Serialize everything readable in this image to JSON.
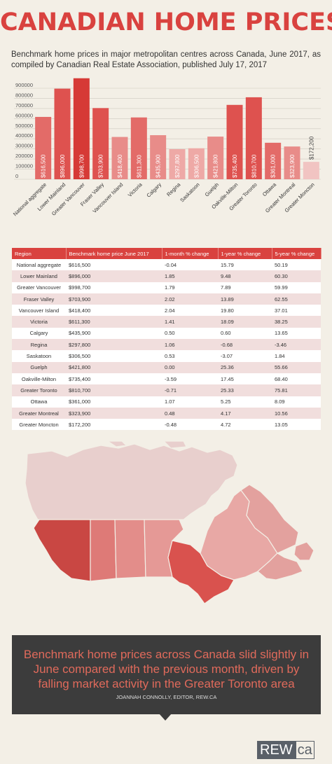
{
  "header": {
    "title": "CANADIAN HOME PRICES",
    "subtitle": "Benchmark home prices in major metropolitan centres across Canada, June 2017, as compiled by Canadian Real Estate Association, published July 17, 2017"
  },
  "chart_data": {
    "type": "bar",
    "categories": [
      "National aggregate",
      "Lower Mainland",
      "Greater Vancouver",
      "Fraser Valley",
      "Vancouver Island",
      "Victoria",
      "Calgary",
      "Regina",
      "Saskatoon",
      "Guelph",
      "Oakville-Milton",
      "Greater Toronto",
      "Ottawa",
      "Greater Montreal",
      "Greater Moncton"
    ],
    "values": [
      616500,
      896000,
      998700,
      703900,
      418400,
      611300,
      435900,
      297800,
      306500,
      421800,
      735400,
      810700,
      361000,
      323900,
      172200
    ],
    "value_labels": [
      "$616,500",
      "$896,000",
      "$998,700",
      "$703,900",
      "$418,400",
      "$611,300",
      "$435,900",
      "$297,800",
      "$306,500",
      "$421,800",
      "$735,400",
      "$810,700",
      "$361,000",
      "$323,900",
      "$172,200"
    ],
    "yticks": [
      "0",
      "100000",
      "200000",
      "300000",
      "400000",
      "500000",
      "600000",
      "700000",
      "800000",
      "900000"
    ],
    "ylim": [
      0,
      1000000
    ],
    "bar_colors": [
      "#e36b68",
      "#de524f",
      "#d63a36",
      "#de524f",
      "#e88c89",
      "#e36b68",
      "#e88c89",
      "#eea9a6",
      "#eea9a6",
      "#e88c89",
      "#de524f",
      "#de524f",
      "#e36b68",
      "#e88c89",
      "#f1c4c2"
    ],
    "grid": true
  },
  "table": {
    "headers": [
      "Region",
      "Benchmark home price June 2017",
      "1-month % change",
      "1-year % change",
      "5-year % change"
    ],
    "rows": [
      [
        "National aggregate",
        "$616,500",
        "-0.04",
        "15.79",
        "50.19"
      ],
      [
        "Lower Mainland",
        "$896,000",
        "1.85",
        "9.48",
        "60.30"
      ],
      [
        "Greater Vancouver",
        "$998,700",
        "1.79",
        "7.89",
        "59.99"
      ],
      [
        "Fraser Valley",
        "$703,900",
        "2.02",
        "13.89",
        "62.55"
      ],
      [
        "Vancouver Island",
        "$418,400",
        "2.04",
        "19.80",
        "37.01"
      ],
      [
        "Victoria",
        "$611,300",
        "1.41",
        "18.09",
        "38.25"
      ],
      [
        "Calgary",
        "$435,900",
        "0.50",
        "0.60",
        "13.65"
      ],
      [
        "Regina",
        "$297,800",
        "1.06",
        "-0.68",
        "-3.46"
      ],
      [
        "Saskatoon",
        "$306,500",
        "0.53",
        "-3.07",
        "1.84"
      ],
      [
        "Guelph",
        "$421,800",
        "0.00",
        "25.36",
        "55.66"
      ],
      [
        "Oakville-Milton",
        "$735,400",
        "-3.59",
        "17.45",
        "68.40"
      ],
      [
        "Greater Toronto",
        "$810,700",
        "-0.71",
        "25.33",
        "75.81"
      ],
      [
        "Ottawa",
        "$361,000",
        "1.07",
        "5.25",
        "8.09"
      ],
      [
        "Greater Montreal",
        "$323,900",
        "0.48",
        "4.17",
        "10.56"
      ],
      [
        "Greater Moncton",
        "$172,200",
        "-0.48",
        "4.72",
        "13.05"
      ]
    ]
  },
  "map": {
    "colors": {
      "north": "#e8cfcd",
      "bc": "#c94743",
      "alberta": "#de7a77",
      "sask": "#e38d8a",
      "manitoba": "#e59996",
      "ontario": "#d9524e",
      "quebec": "#e8a8a5",
      "atlantic": "#e3a19e",
      "border": "#f3efe6"
    }
  },
  "quote": {
    "text": "Benchmark home prices across Canada slid slightly in June compared with the previous month, driven by falling market activity in the Greater Toronto area",
    "attribution": "JOANNAH CONNOLLY, EDITOR, REW.CA"
  },
  "logo": {
    "left": "REW",
    "right": "ca"
  }
}
